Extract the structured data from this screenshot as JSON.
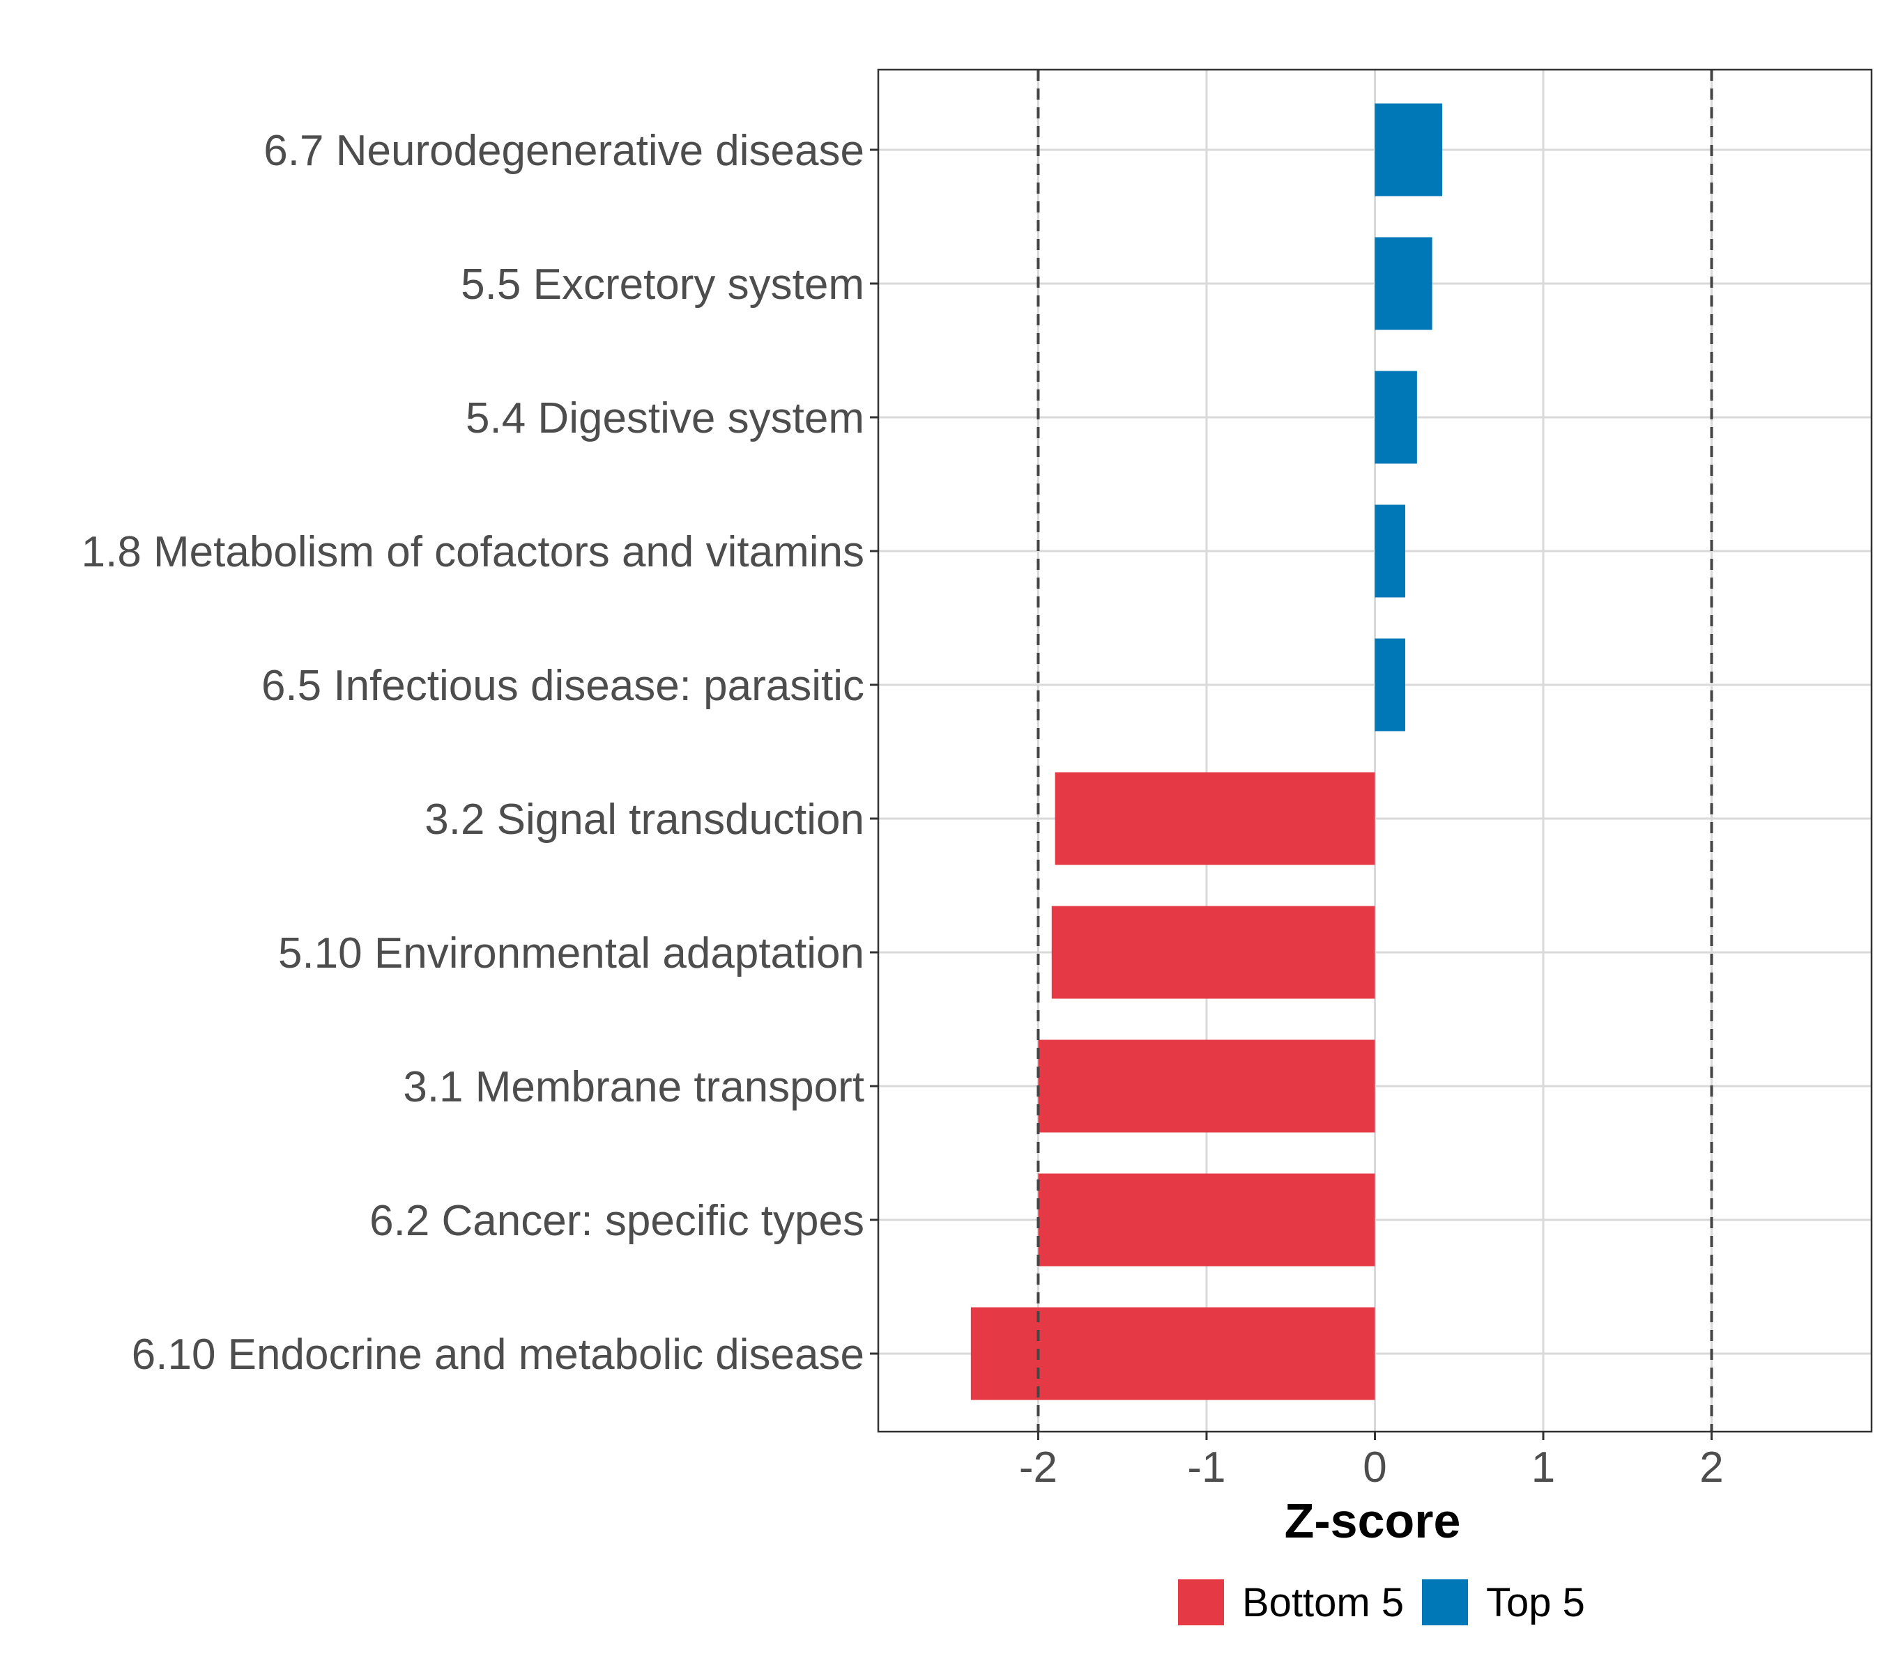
{
  "chart_data": {
    "type": "bar",
    "orientation": "horizontal",
    "title": "",
    "xlabel": "Z-score",
    "ylabel": "",
    "xlim": [
      -2.95,
      2.95
    ],
    "xticks": [
      -2,
      -1,
      0,
      1,
      2
    ],
    "xtick_labels": [
      "-2",
      "-1",
      "0",
      "1",
      "2"
    ],
    "reference_lines": [
      -2,
      2
    ],
    "grid": true,
    "categories": [
      "6.7 Neurodegenerative disease",
      "5.5 Excretory system",
      "5.4 Digestive system",
      "1.8 Metabolism of cofactors and vitamins",
      "6.5 Infectious disease: parasitic",
      "3.2 Signal transduction",
      "5.10 Environmental adaptation",
      "3.1 Membrane transport",
      "6.2 Cancer: specific types",
      "6.10 Endocrine and metabolic disease"
    ],
    "values": [
      0.4,
      0.34,
      0.25,
      0.18,
      0.18,
      -1.9,
      -1.92,
      -2.0,
      -2.0,
      -2.4
    ],
    "groups": [
      "Top 5",
      "Top 5",
      "Top 5",
      "Top 5",
      "Top 5",
      "Bottom 5",
      "Bottom 5",
      "Bottom 5",
      "Bottom 5",
      "Bottom 5"
    ],
    "legend": {
      "position": "bottom",
      "entries": [
        {
          "name": "Bottom 5",
          "color": "#E63946"
        },
        {
          "name": "Top 5",
          "color": "#0077B6"
        }
      ]
    }
  }
}
